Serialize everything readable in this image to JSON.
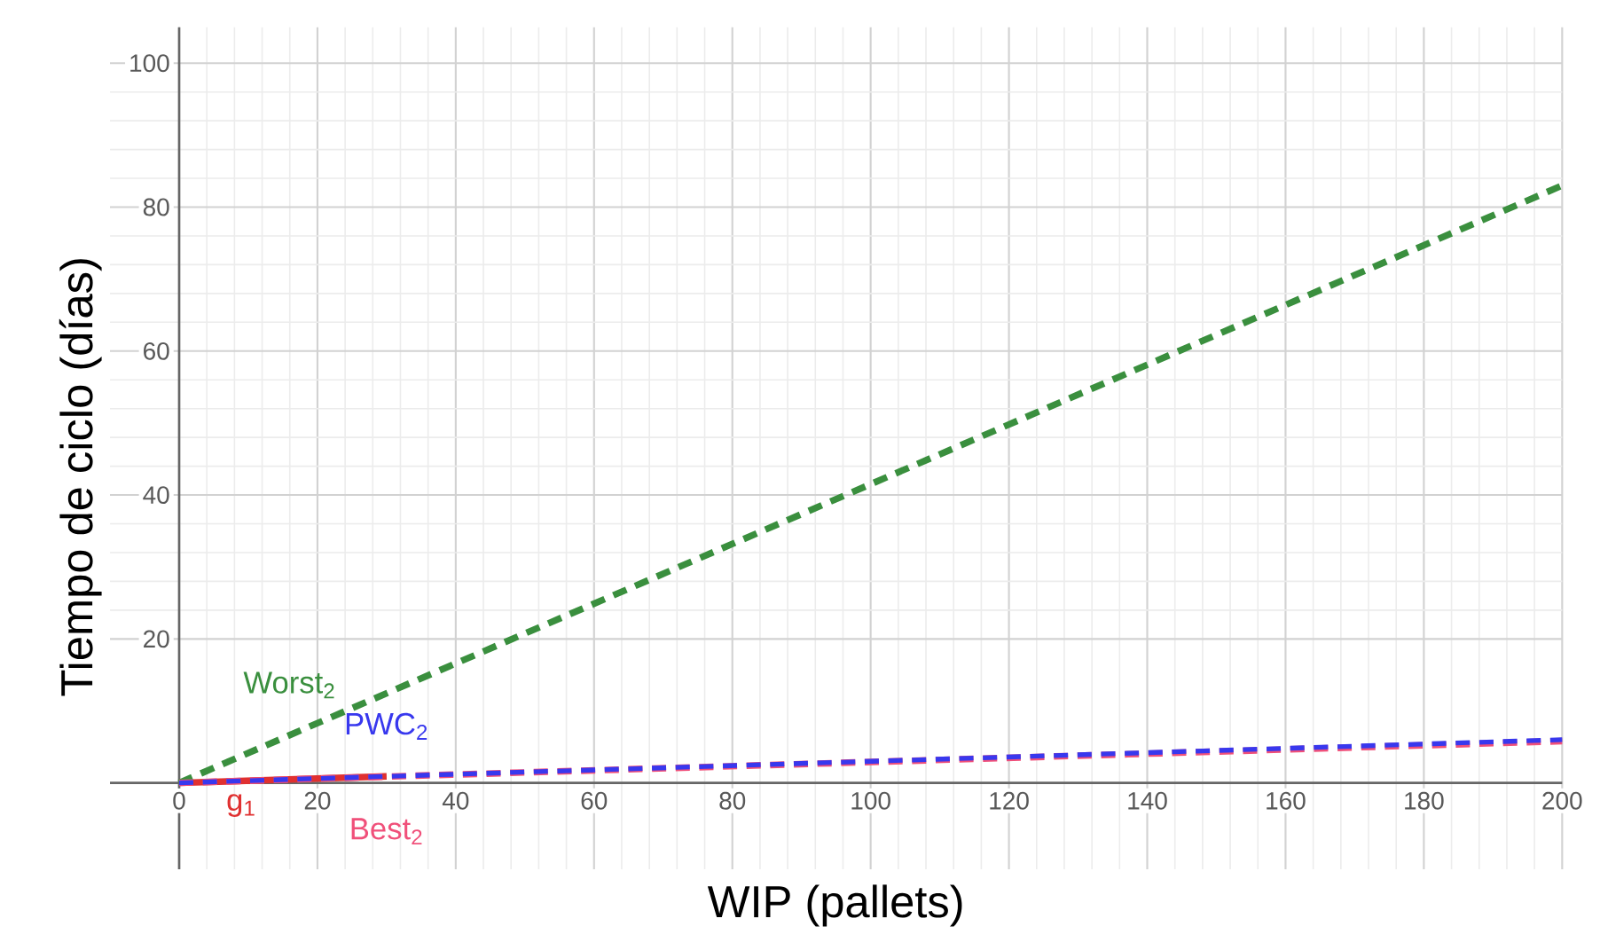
{
  "chart_data": {
    "type": "line",
    "xlabel": "WIP (pallets)",
    "ylabel": "Tiempo de ciclo (días)",
    "xlim": [
      -10,
      200
    ],
    "ylim": [
      -12,
      105
    ],
    "xticks": [
      0,
      20,
      40,
      60,
      80,
      100,
      120,
      140,
      160,
      180,
      200
    ],
    "yticks": [
      20,
      40,
      60,
      80,
      100
    ],
    "grid": true,
    "line_style": "dashed",
    "series": [
      {
        "name": "g$_{1}$",
        "color": "#e03030",
        "x": [
          0,
          30
        ],
        "values": [
          0,
          0.9
        ],
        "line_style": "solid"
      },
      {
        "name": "Worst$_{2}$",
        "color": "#3a8f3e",
        "x": [
          0,
          200
        ],
        "values": [
          0,
          83
        ]
      },
      {
        "name": "Best$_{2}$",
        "color": "#f0507a",
        "x": [
          0,
          200
        ],
        "values": [
          0,
          5.8
        ]
      },
      {
        "name": "PWC$_{2}$",
        "color": "#3838ee",
        "x": [
          0,
          200
        ],
        "values": [
          0,
          6
        ]
      }
    ]
  }
}
